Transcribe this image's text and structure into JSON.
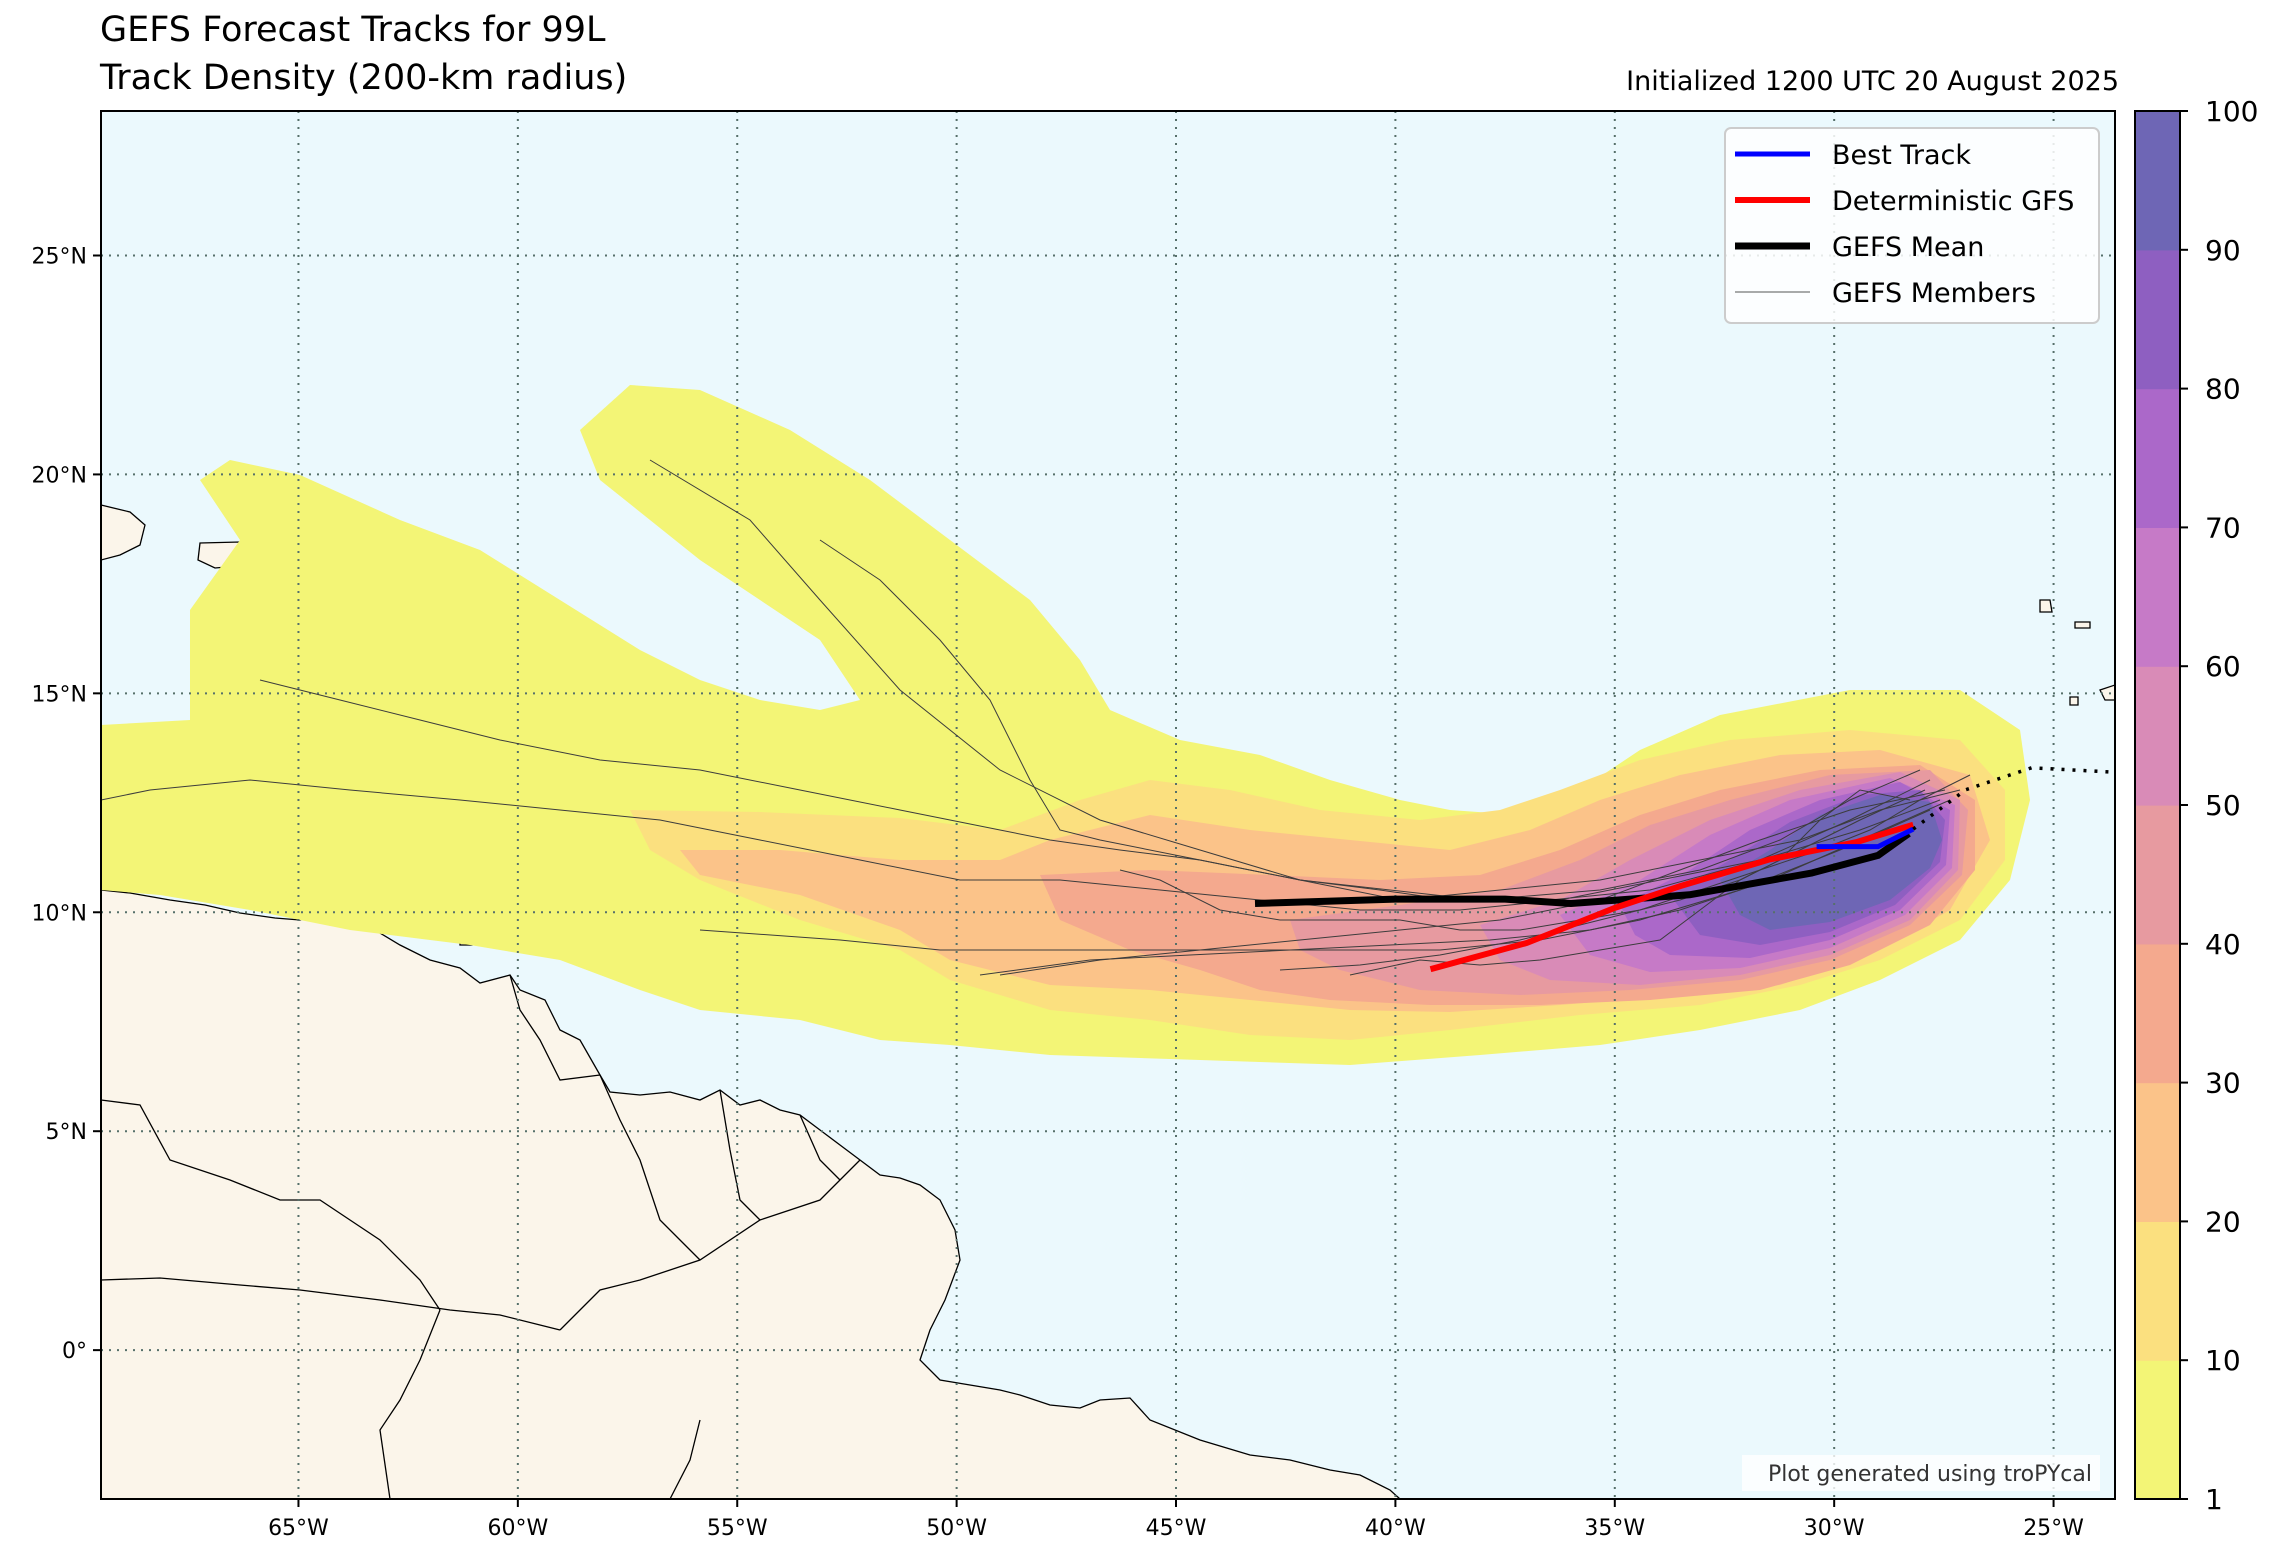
{
  "header": {
    "title_line1": "GEFS Forecast Tracks for 99L",
    "title_line2": "Track Density (200-km radius)",
    "initialized": "Initialized 1200 UTC 20 August 2025"
  },
  "map": {
    "extent": {
      "lon_min": -69.5,
      "lon_max": -23.6,
      "lat_min": -3.4,
      "lat_max": 28.3
    },
    "lon_ticks": [
      {
        "value": -65,
        "label": "65°W"
      },
      {
        "value": -60,
        "label": "60°W"
      },
      {
        "value": -55,
        "label": "55°W"
      },
      {
        "value": -50,
        "label": "50°W"
      },
      {
        "value": -45,
        "label": "45°W"
      },
      {
        "value": -40,
        "label": "40°W"
      },
      {
        "value": -35,
        "label": "35°W"
      },
      {
        "value": -30,
        "label": "30°W"
      },
      {
        "value": -25,
        "label": "25°W"
      }
    ],
    "lat_ticks": [
      {
        "value": 25,
        "label": "25°N"
      },
      {
        "value": 20,
        "label": "20°N"
      },
      {
        "value": 15,
        "label": "15°N"
      },
      {
        "value": 10,
        "label": "10°N"
      },
      {
        "value": 5,
        "label": "5°N"
      },
      {
        "value": 0,
        "label": "0°"
      }
    ],
    "colors": {
      "ocean": "#ebf9fd",
      "land": "#fbf5ea",
      "grid": "#56706a"
    },
    "tracks": {
      "best_track": [
        [
          -30.4,
          11.5
        ],
        [
          -29.0,
          11.5
        ],
        [
          -28.2,
          11.9
        ]
      ],
      "best_track_forecast_dotted": [
        [
          -28.2,
          11.9
        ],
        [
          -27.0,
          12.8
        ],
        [
          -25.5,
          13.3
        ],
        [
          -23.6,
          13.2
        ]
      ],
      "deterministic_gfs": [
        [
          -39.2,
          8.7
        ],
        [
          -37.0,
          9.3
        ],
        [
          -35.0,
          10.1
        ],
        [
          -33.5,
          10.6
        ],
        [
          -31.5,
          11.2
        ],
        [
          -29.5,
          11.6
        ],
        [
          -28.2,
          12.0
        ]
      ],
      "gefs_mean": [
        [
          -43.2,
          10.2
        ],
        [
          -40.0,
          10.3
        ],
        [
          -37.5,
          10.3
        ],
        [
          -36.0,
          10.2
        ],
        [
          -33.3,
          10.4
        ],
        [
          -30.5,
          10.9
        ],
        [
          -29.0,
          11.3
        ],
        [
          -28.3,
          11.8
        ]
      ]
    }
  },
  "legend": {
    "entries": [
      {
        "label": "Best Track",
        "color": "#0000ff",
        "width": 5
      },
      {
        "label": "Deterministic GFS",
        "color": "#ff0000",
        "width": 6
      },
      {
        "label": "GEFS Mean",
        "color": "#000000",
        "width": 7
      },
      {
        "label": "GEFS Members",
        "color": "#555555",
        "width": 1
      }
    ]
  },
  "colorbar": {
    "tick_labels": [
      "1",
      "10",
      "20",
      "30",
      "40",
      "50",
      "60",
      "70",
      "80",
      "90",
      "100"
    ],
    "colors": [
      "#f3f576",
      "#fbe07f",
      "#fbc389",
      "#f4a98e",
      "#e79aa0",
      "#d98bb7",
      "#c67ac7",
      "#ab68c9",
      "#8e5fc1",
      "#6e66b5"
    ]
  },
  "credit": "Plot generated using troPYcal"
}
